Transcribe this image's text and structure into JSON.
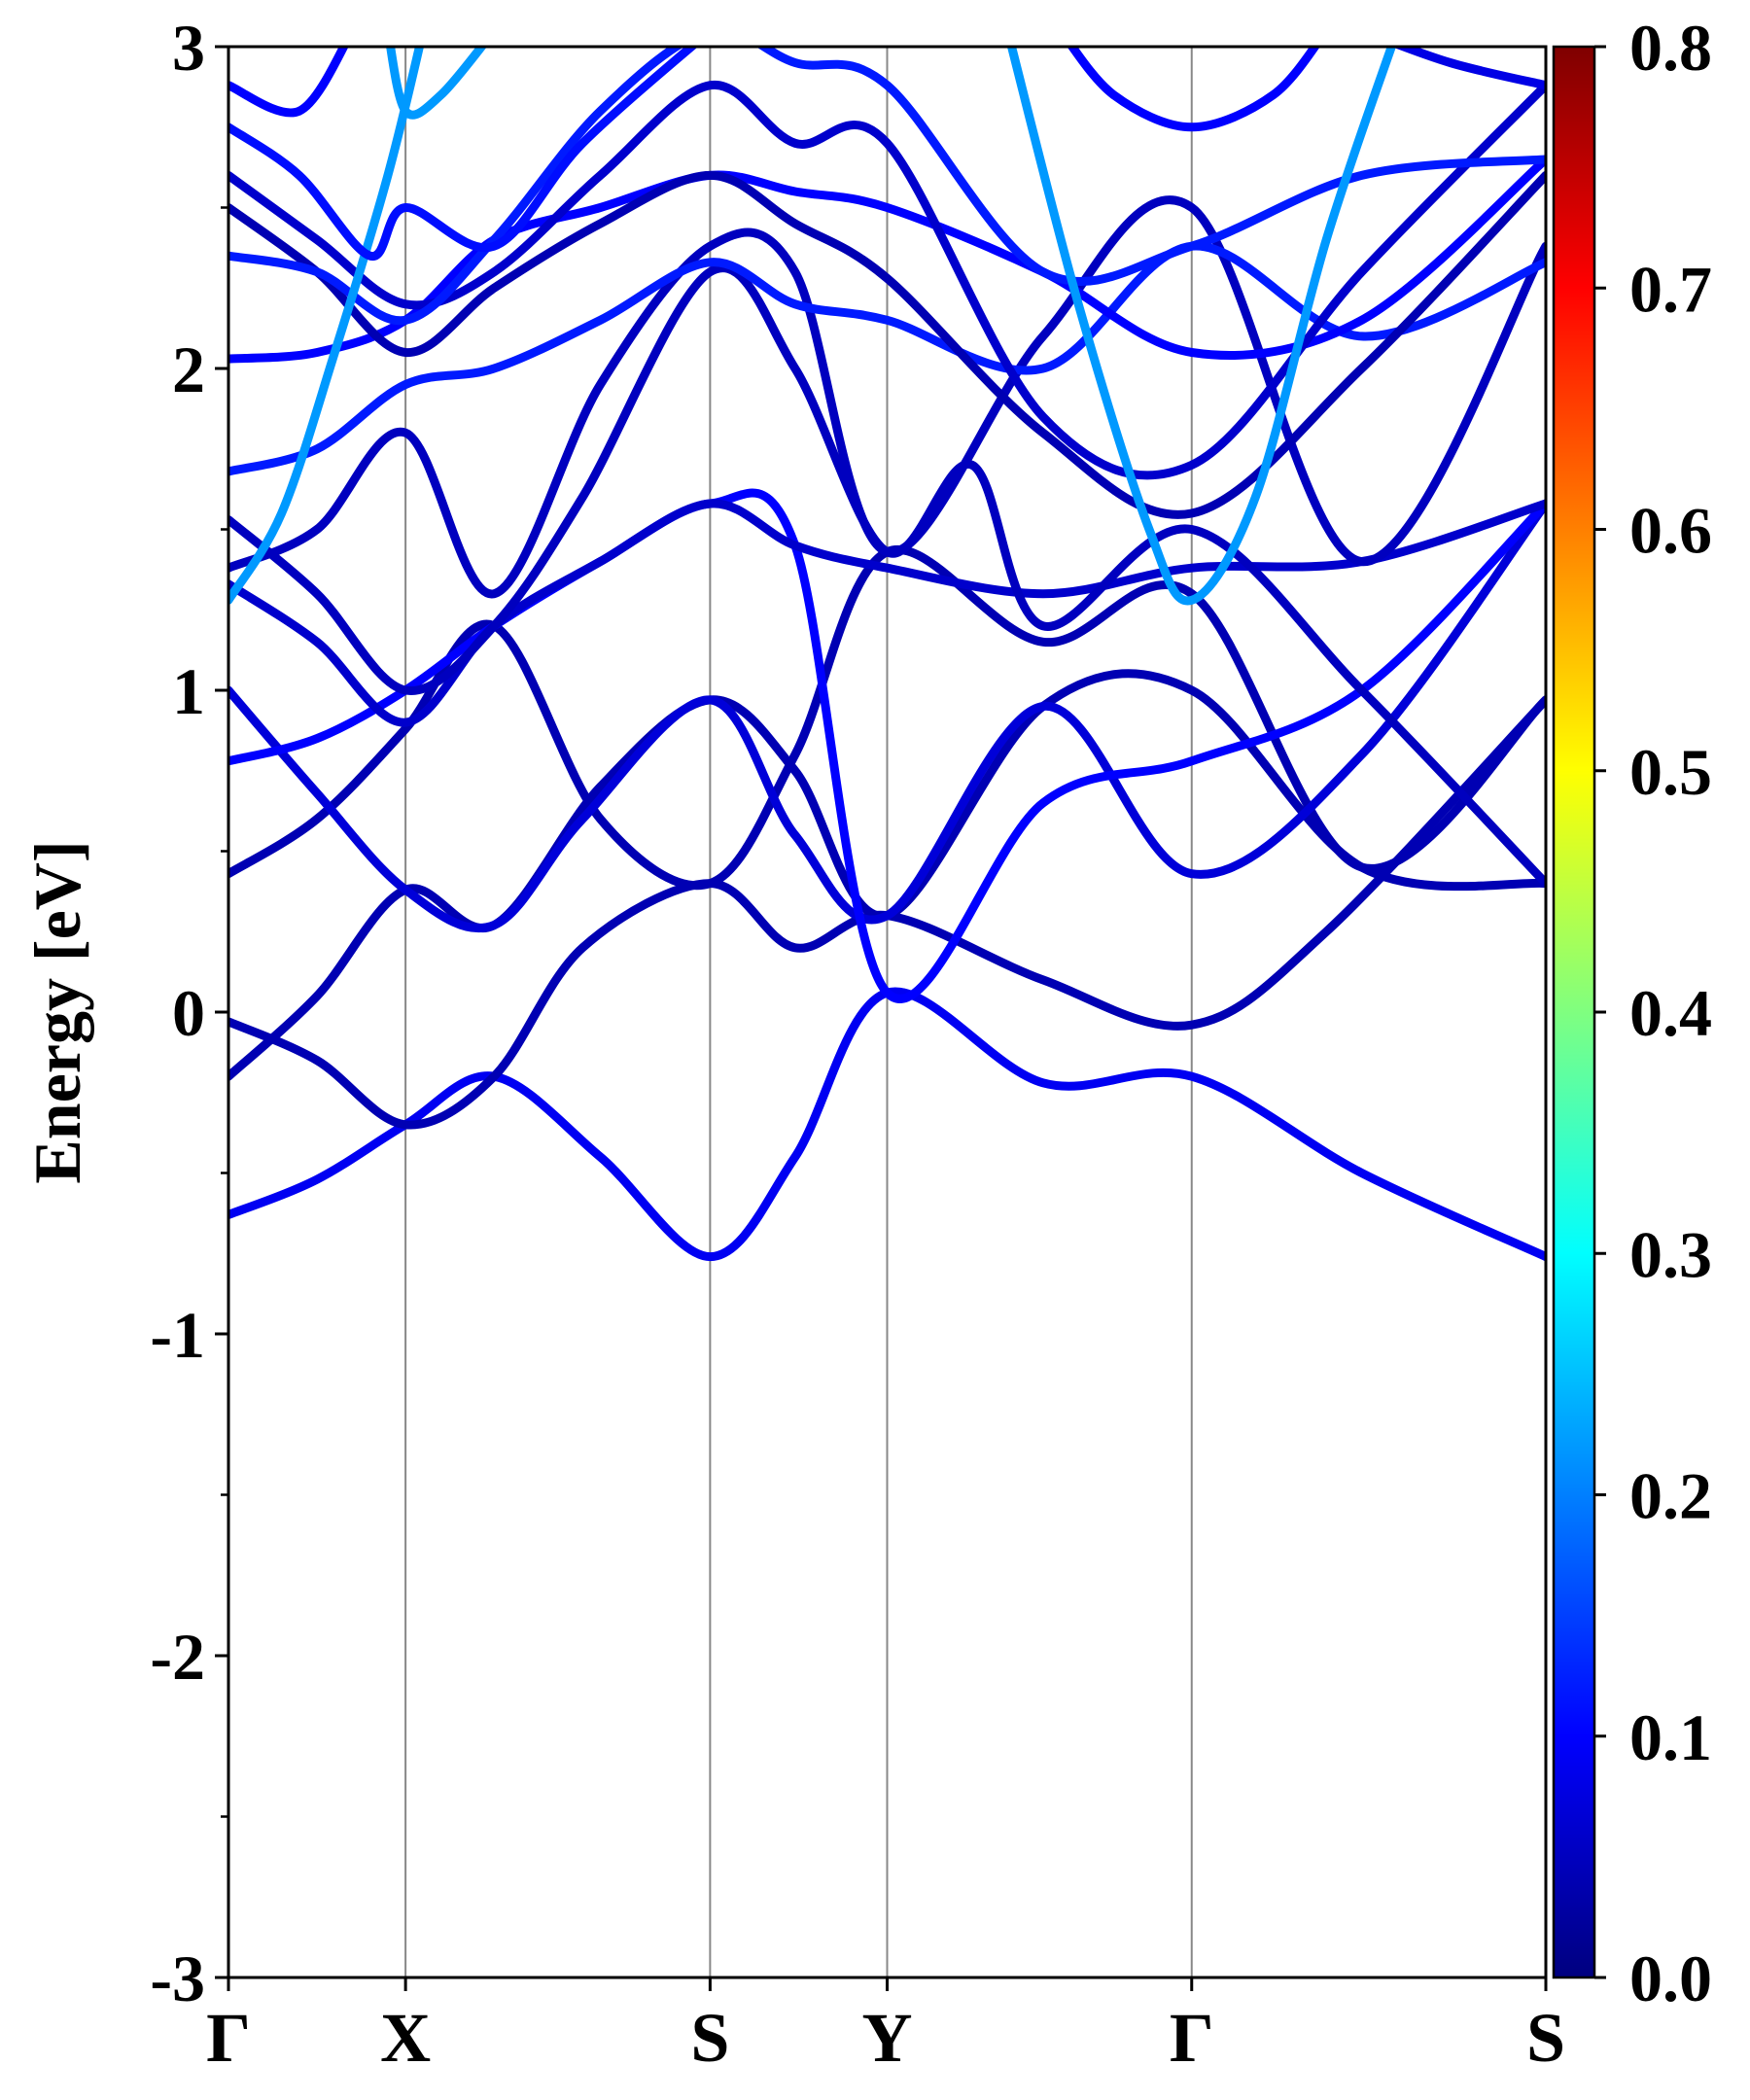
{
  "chart_data": {
    "type": "line",
    "ylabel": "Energy [eV]",
    "ylim": [
      -3,
      3
    ],
    "yticks": [
      "-3",
      "-2",
      "-1",
      "0",
      "1",
      "2",
      "3"
    ],
    "xticks": [
      {
        "label": "Γ",
        "pos": 0.0
      },
      {
        "label": "X",
        "pos": 0.5
      },
      {
        "label": "S",
        "pos": 1.36
      },
      {
        "label": "Y",
        "pos": 1.86
      },
      {
        "label": "Γ",
        "pos": 2.72
      },
      {
        "label": "S",
        "pos": 3.72
      }
    ],
    "grid": "vertical lines at high-symmetry points",
    "colorbar": {
      "range": [
        0.0,
        0.8
      ],
      "ticks": [
        "0.0",
        "0.1",
        "0.2",
        "0.3",
        "0.4",
        "0.5",
        "0.6",
        "0.7",
        "0.8"
      ],
      "colormap": "jet"
    },
    "bands": [
      {
        "weight": 0.09,
        "points": [
          [
            0,
            -0.63
          ],
          [
            0.25,
            -0.52
          ],
          [
            0.5,
            -0.35
          ],
          [
            0.75,
            -0.2
          ],
          [
            1.05,
            -0.45
          ],
          [
            1.36,
            -0.76
          ],
          [
            1.6,
            -0.45
          ],
          [
            1.86,
            0.06
          ],
          [
            2.3,
            -0.22
          ],
          [
            2.72,
            -0.2
          ],
          [
            3.2,
            -0.5
          ],
          [
            3.72,
            -0.76
          ]
        ]
      },
      {
        "weight": 0.04,
        "points": [
          [
            0,
            -0.03
          ],
          [
            0.25,
            -0.15
          ],
          [
            0.5,
            -0.35
          ],
          [
            0.75,
            -0.2
          ],
          [
            1.0,
            0.2
          ],
          [
            1.36,
            0.4
          ],
          [
            1.6,
            0.2
          ],
          [
            1.86,
            0.3
          ],
          [
            2.3,
            0.1
          ],
          [
            2.72,
            -0.04
          ],
          [
            3.1,
            0.25
          ],
          [
            3.72,
            0.97
          ]
        ]
      },
      {
        "weight": 0.04,
        "points": [
          [
            0,
            -0.2
          ],
          [
            0.25,
            0.05
          ],
          [
            0.5,
            0.38
          ],
          [
            0.75,
            0.27
          ],
          [
            1.05,
            0.7
          ],
          [
            1.36,
            0.97
          ],
          [
            1.6,
            0.75
          ],
          [
            1.86,
            0.3
          ],
          [
            2.3,
            0.95
          ],
          [
            2.72,
            1.0
          ],
          [
            3.2,
            0.45
          ],
          [
            3.72,
            0.4
          ]
        ]
      },
      {
        "weight": 0.04,
        "points": [
          [
            0,
            0.43
          ],
          [
            0.25,
            0.6
          ],
          [
            0.5,
            0.88
          ],
          [
            0.75,
            1.2
          ],
          [
            1.05,
            0.6
          ],
          [
            1.36,
            0.4
          ],
          [
            1.6,
            0.8
          ],
          [
            1.86,
            1.43
          ],
          [
            2.3,
            1.15
          ],
          [
            2.72,
            1.3
          ],
          [
            3.2,
            0.45
          ],
          [
            3.72,
            0.97
          ]
        ]
      },
      {
        "weight": 0.07,
        "points": [
          [
            0,
            1.0
          ],
          [
            0.25,
            0.68
          ],
          [
            0.5,
            0.38
          ],
          [
            0.75,
            0.27
          ],
          [
            1.0,
            0.6
          ],
          [
            1.36,
            0.97
          ],
          [
            1.6,
            0.55
          ],
          [
            1.86,
            0.3
          ],
          [
            2.3,
            0.95
          ],
          [
            2.72,
            0.43
          ],
          [
            3.2,
            0.8
          ],
          [
            3.72,
            1.58
          ]
        ]
      },
      {
        "weight": 0.1,
        "points": [
          [
            0,
            0.78
          ],
          [
            0.25,
            0.85
          ],
          [
            0.5,
            1.0
          ],
          [
            0.75,
            1.2
          ],
          [
            1.05,
            1.4
          ],
          [
            1.36,
            1.58
          ],
          [
            1.6,
            1.45
          ],
          [
            1.86,
            0.06
          ],
          [
            2.3,
            0.65
          ],
          [
            2.72,
            0.78
          ],
          [
            3.2,
            1.0
          ],
          [
            3.72,
            1.58
          ]
        ]
      },
      {
        "weight": 0.06,
        "points": [
          [
            0,
            1.33
          ],
          [
            0.25,
            1.15
          ],
          [
            0.5,
            0.9
          ],
          [
            0.75,
            1.2
          ],
          [
            1.05,
            1.4
          ],
          [
            1.36,
            1.58
          ],
          [
            1.6,
            1.45
          ],
          [
            1.86,
            1.38
          ],
          [
            2.3,
            1.3
          ],
          [
            2.72,
            1.38
          ],
          [
            3.2,
            1.4
          ],
          [
            3.72,
            1.58
          ]
        ]
      },
      {
        "weight": 0.05,
        "points": [
          [
            0,
            1.53
          ],
          [
            0.25,
            1.3
          ],
          [
            0.5,
            1.0
          ],
          [
            0.75,
            1.2
          ],
          [
            1.0,
            1.6
          ],
          [
            1.36,
            2.3
          ],
          [
            1.6,
            2.0
          ],
          [
            1.86,
            1.43
          ],
          [
            2.1,
            1.7
          ],
          [
            2.3,
            1.2
          ],
          [
            2.72,
            1.5
          ],
          [
            3.2,
            1.0
          ],
          [
            3.72,
            0.4
          ]
        ]
      },
      {
        "weight": 0.05,
        "points": [
          [
            0,
            1.38
          ],
          [
            0.25,
            1.5
          ],
          [
            0.5,
            1.8
          ],
          [
            0.75,
            1.3
          ],
          [
            1.05,
            1.95
          ],
          [
            1.36,
            2.38
          ],
          [
            1.6,
            2.3
          ],
          [
            1.86,
            1.43
          ],
          [
            2.3,
            2.1
          ],
          [
            2.72,
            2.5
          ],
          [
            3.2,
            1.4
          ],
          [
            3.72,
            2.38
          ]
        ]
      },
      {
        "weight": 0.12,
        "points": [
          [
            0,
            1.68
          ],
          [
            0.25,
            1.75
          ],
          [
            0.5,
            1.95
          ],
          [
            0.75,
            2.0
          ],
          [
            1.05,
            2.15
          ],
          [
            1.36,
            2.33
          ],
          [
            1.6,
            2.2
          ],
          [
            1.86,
            2.15
          ],
          [
            2.3,
            2.0
          ],
          [
            2.72,
            2.38
          ],
          [
            3.2,
            2.1
          ],
          [
            3.72,
            2.33
          ]
        ]
      },
      {
        "weight": 0.1,
        "points": [
          [
            0,
            2.03
          ],
          [
            0.25,
            2.05
          ],
          [
            0.5,
            2.15
          ],
          [
            0.75,
            2.4
          ],
          [
            1.05,
            2.5
          ],
          [
            1.36,
            2.6
          ],
          [
            1.6,
            2.55
          ],
          [
            1.86,
            2.5
          ],
          [
            2.3,
            2.3
          ],
          [
            2.72,
            2.05
          ],
          [
            3.2,
            2.15
          ],
          [
            3.72,
            2.65
          ]
        ]
      },
      {
        "weight": 0.04,
        "points": [
          [
            0,
            2.5
          ],
          [
            0.25,
            2.3
          ],
          [
            0.5,
            2.05
          ],
          [
            0.75,
            2.25
          ],
          [
            1.05,
            2.45
          ],
          [
            1.36,
            2.6
          ],
          [
            1.6,
            2.45
          ],
          [
            1.86,
            2.28
          ],
          [
            2.3,
            1.8
          ],
          [
            2.72,
            1.55
          ],
          [
            3.2,
            2.0
          ],
          [
            3.72,
            2.6
          ]
        ]
      },
      {
        "weight": 0.06,
        "points": [
          [
            0,
            2.6
          ],
          [
            0.25,
            2.4
          ],
          [
            0.5,
            2.2
          ],
          [
            0.75,
            2.3
          ],
          [
            1.05,
            2.6
          ],
          [
            1.36,
            2.88
          ],
          [
            1.6,
            2.7
          ],
          [
            1.86,
            2.7
          ],
          [
            2.3,
            1.85
          ],
          [
            2.72,
            1.7
          ],
          [
            3.2,
            2.3
          ],
          [
            3.72,
            2.88
          ]
        ]
      },
      {
        "weight": 0.12,
        "points": [
          [
            0,
            2.35
          ],
          [
            0.25,
            2.3
          ],
          [
            0.5,
            2.15
          ],
          [
            0.75,
            2.4
          ],
          [
            1.05,
            2.8
          ],
          [
            1.36,
            3.05
          ],
          [
            1.6,
            2.95
          ],
          [
            1.86,
            2.88
          ],
          [
            2.3,
            2.3
          ],
          [
            2.72,
            2.38
          ],
          [
            3.2,
            2.6
          ],
          [
            3.72,
            2.65
          ]
        ]
      },
      {
        "weight": 0.22,
        "points": [
          [
            0,
            1.28
          ],
          [
            0.15,
            1.55
          ],
          [
            0.3,
            2.05
          ],
          [
            0.45,
            2.6
          ],
          [
            0.55,
            3.05
          ]
        ]
      },
      {
        "weight": 0.22,
        "points": [
          [
            0.45,
            3.05
          ],
          [
            0.5,
            2.8
          ],
          [
            0.6,
            2.85
          ],
          [
            0.75,
            3.05
          ]
        ]
      },
      {
        "weight": 0.22,
        "points": [
          [
            2.2,
            3.05
          ],
          [
            2.4,
            2.2
          ],
          [
            2.6,
            1.5
          ],
          [
            2.72,
            1.28
          ],
          [
            2.9,
            1.6
          ],
          [
            3.1,
            2.4
          ],
          [
            3.3,
            3.05
          ]
        ]
      },
      {
        "weight": 0.11,
        "points": [
          [
            0,
            2.75
          ],
          [
            0.2,
            2.6
          ],
          [
            0.4,
            2.35
          ],
          [
            0.5,
            2.5
          ],
          [
            0.75,
            2.38
          ],
          [
            1.0,
            2.7
          ],
          [
            1.36,
            3.05
          ]
        ]
      },
      {
        "weight": 0.1,
        "points": [
          [
            0,
            2.88
          ],
          [
            0.2,
            2.8
          ],
          [
            0.35,
            3.05
          ]
        ]
      },
      {
        "weight": 0.1,
        "points": [
          [
            2.35,
            3.05
          ],
          [
            2.5,
            2.85
          ],
          [
            2.72,
            2.75
          ],
          [
            2.95,
            2.85
          ],
          [
            3.1,
            3.05
          ]
        ]
      },
      {
        "weight": 0.08,
        "points": [
          [
            3.2,
            3.05
          ],
          [
            3.45,
            2.95
          ],
          [
            3.72,
            2.88
          ]
        ]
      }
    ]
  }
}
